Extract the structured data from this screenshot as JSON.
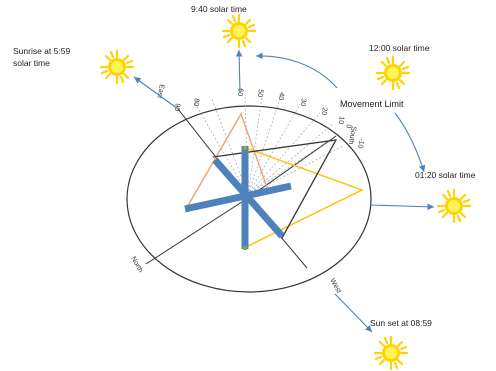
{
  "labels": {
    "sunrise_line1": "Sunrise at 5:59",
    "sunrise_line2": "solar time",
    "t0940": "9:40 solar time",
    "t1200": "12:00 solar time",
    "t0120": "01:20 solar time",
    "sunset": "Sun set at 08:59",
    "movement_limit": "Movement Limit"
  },
  "compass": {
    "north": "North",
    "east": "East",
    "south": "South",
    "west": "West"
  },
  "angle_ticks": [
    "90",
    "80",
    "60",
    "50",
    "40",
    "30",
    "20",
    "10",
    "0",
    "-10"
  ],
  "colors": {
    "sun": "#ffd200",
    "sun_center": "#fff35a",
    "arrow": "#4f81bd",
    "panel": "#4f81bd",
    "orange_triangle": "#f0a070",
    "yellow_triangle": "#ffc000",
    "dark_triangle": "#3a3a3a",
    "circle": "#333333"
  }
}
